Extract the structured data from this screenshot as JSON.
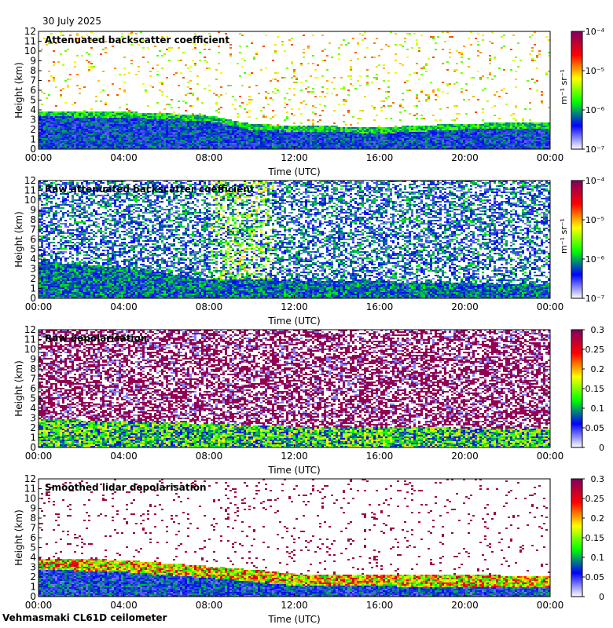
{
  "date": "30 July 2025",
  "instrument": "Vehmasmaki CL61D ceilometer",
  "chart_data": [
    {
      "type": "heatmap",
      "title": "Attenuated backscatter coefficient",
      "xlabel": "Time (UTC)",
      "ylabel": "Height (km)",
      "xticks": [
        "00:00",
        "04:00",
        "08:00",
        "12:00",
        "16:00",
        "20:00",
        "00:00"
      ],
      "yticks": [
        0,
        1,
        2,
        3,
        4,
        5,
        6,
        7,
        8,
        9,
        10,
        11,
        12
      ],
      "xlim_hours": [
        0,
        24
      ],
      "ylim": [
        0,
        12
      ],
      "colorbar": {
        "scale": "log",
        "range": [
          1e-07,
          0.0001
        ],
        "labels": [
          "10⁻⁴",
          "10⁻⁵",
          "10⁻⁶",
          "10⁻⁷"
        ],
        "values": [
          0.0001,
          1e-05,
          1e-06,
          1e-07
        ],
        "unit": "m⁻¹ sr⁻¹",
        "colormap": [
          "#ffffff",
          "#0000ff",
          "#00ff00",
          "#ffff00",
          "#ff0000",
          "#800060"
        ]
      },
      "features": {
        "boundary_layer_top_km": [
          [
            0,
            4.0
          ],
          [
            4,
            3.9
          ],
          [
            8,
            3.5
          ],
          [
            10,
            2.6
          ],
          [
            12,
            2.5
          ],
          [
            16,
            2.3
          ],
          [
            20,
            2.7
          ],
          [
            24,
            2.8
          ]
        ],
        "sparse_signal_top_km": 12
      }
    },
    {
      "type": "heatmap",
      "title": "Raw attenuated backscatter coefficient",
      "xlabel": "Time (UTC)",
      "ylabel": "Height (km)",
      "xticks": [
        "00:00",
        "04:00",
        "08:00",
        "12:00",
        "16:00",
        "20:00",
        "00:00"
      ],
      "yticks": [
        0,
        1,
        2,
        3,
        4,
        5,
        6,
        7,
        8,
        9,
        10,
        11,
        12
      ],
      "xlim_hours": [
        0,
        24
      ],
      "ylim": [
        0,
        12
      ],
      "colorbar": {
        "scale": "log",
        "range": [
          1e-07,
          0.0001
        ],
        "labels": [
          "10⁻⁴",
          "10⁻⁵",
          "10⁻⁶",
          "10⁻⁷"
        ],
        "values": [
          0.0001,
          1e-05,
          1e-06,
          1e-07
        ],
        "unit": "m⁻¹ sr⁻¹",
        "colormap": [
          "#ffffff",
          "#0000ff",
          "#00ff00",
          "#ffff00",
          "#ff0000",
          "#800060"
        ]
      },
      "features": {
        "boundary_layer_top_km": [
          [
            0,
            3.8
          ],
          [
            4,
            3.2
          ],
          [
            8,
            2.0
          ],
          [
            12,
            1.9
          ],
          [
            16,
            1.8
          ],
          [
            20,
            1.6
          ],
          [
            24,
            1.5
          ]
        ]
      }
    },
    {
      "type": "heatmap",
      "title": "Raw depolarisation",
      "xlabel": "Time (UTC)",
      "ylabel": "Height (km)",
      "xticks": [
        "00:00",
        "04:00",
        "08:00",
        "12:00",
        "16:00",
        "20:00",
        "00:00"
      ],
      "yticks": [
        0,
        1,
        2,
        3,
        4,
        5,
        6,
        7,
        8,
        9,
        10,
        11,
        12
      ],
      "xlim_hours": [
        0,
        24
      ],
      "ylim": [
        0,
        12
      ],
      "colorbar": {
        "scale": "linear",
        "range": [
          0,
          0.3
        ],
        "labels": [
          "0.3",
          "0.25",
          "0.2",
          "0.15",
          "0.1",
          "0.05",
          "0"
        ],
        "values": [
          0.3,
          0.25,
          0.2,
          0.15,
          0.1,
          0.05,
          0
        ],
        "unit": "",
        "colormap": [
          "#ffffff",
          "#0000ff",
          "#00ff00",
          "#ffff00",
          "#ff0000",
          "#800060"
        ]
      },
      "features": {
        "boundary_layer_top_km": [
          [
            0,
            3.0
          ],
          [
            8,
            2.5
          ],
          [
            12,
            2.2
          ],
          [
            24,
            2.0
          ]
        ]
      }
    },
    {
      "type": "heatmap",
      "title": "Smoothed lidar depolarisation",
      "xlabel": "Time (UTC)",
      "ylabel": "Height (km)",
      "xticks": [
        "00:00",
        "04:00",
        "08:00",
        "12:00",
        "16:00",
        "20:00",
        "00:00"
      ],
      "yticks": [
        0,
        1,
        2,
        3,
        4,
        5,
        6,
        7,
        8,
        9,
        10,
        11,
        12
      ],
      "xlim_hours": [
        0,
        24
      ],
      "ylim": [
        0,
        12
      ],
      "colorbar": {
        "scale": "linear",
        "range": [
          0,
          0.3
        ],
        "labels": [
          "0.3",
          "0.25",
          "0.2",
          "0.15",
          "0.1",
          "0.05",
          "0"
        ],
        "values": [
          0.3,
          0.25,
          0.2,
          0.15,
          0.1,
          0.05,
          0
        ],
        "unit": "",
        "colormap": [
          "#ffffff",
          "#0000ff",
          "#00ff00",
          "#ffff00",
          "#ff0000",
          "#800060"
        ]
      },
      "features": {
        "boundary_layer_top_km": [
          [
            0,
            4.0
          ],
          [
            4,
            3.8
          ],
          [
            9,
            3.0
          ],
          [
            12,
            2.4
          ],
          [
            24,
            2.2
          ]
        ]
      }
    }
  ]
}
